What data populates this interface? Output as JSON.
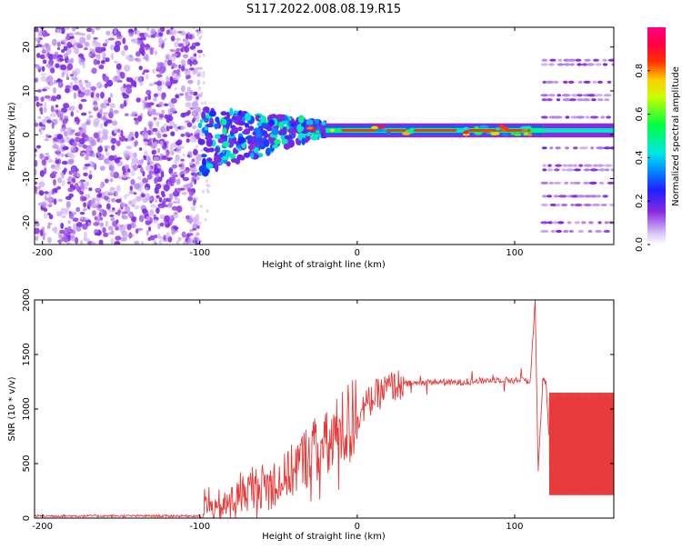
{
  "title": "S117.2022.008.08.19.R15",
  "colors": {
    "snr_line": "#e83a3a",
    "axis": "#000000",
    "background": "#ffffff"
  },
  "chart_data": [
    {
      "type": "heatmap",
      "title": "S117.2022.008.08.19.R15",
      "xlabel": "Height of straight line (km)",
      "ylabel": "Frequency (Hz)",
      "xlim": [
        -205,
        163
      ],
      "ylim": [
        -25,
        24.5
      ],
      "x_ticks": [
        -200,
        -100,
        0,
        100
      ],
      "x_tick_labels": [
        "-200",
        "-100",
        "0",
        "100"
      ],
      "y_ticks": [
        -20,
        -10,
        0,
        10,
        20
      ],
      "y_tick_labels": [
        "-20",
        "-10",
        "0",
        "10",
        "20"
      ],
      "colorbar": {
        "label": "Normalized spectral amplitude",
        "range": [
          0,
          1
        ],
        "ticks": [
          0.0,
          0.2,
          0.4,
          0.6,
          0.8
        ],
        "tick_labels": [
          "0.0",
          "0.2",
          "0.4",
          "0.6",
          "0.8"
        ],
        "colormap": "rainbow (white → purple → blue → cyan → green → yellow → red → magenta)"
      },
      "features": {
        "noise_region_x": [
          -205,
          -100
        ],
        "transition_region_x": [
          -100,
          -20
        ],
        "signal_frequency_hz": 1,
        "sideband_region_x": [
          118,
          163
        ],
        "sideband_frequencies_hz": [
          -22,
          -20,
          -16,
          -14,
          -11,
          -8,
          -7,
          -3,
          4,
          8,
          9,
          12,
          16,
          17
        ]
      },
      "grid": false
    },
    {
      "type": "line",
      "xlabel": "Height of straight line (km)",
      "ylabel": "SNR (10 * v/v)",
      "xlim": [
        -205,
        163
      ],
      "ylim": [
        0,
        2000
      ],
      "x_ticks": [
        -200,
        -100,
        0,
        100
      ],
      "x_tick_labels": [
        "-200",
        "-100",
        "0",
        "100"
      ],
      "y_ticks": [
        0,
        500,
        1000,
        1500,
        2000
      ],
      "y_tick_labels": [
        "0",
        "500",
        "1000",
        "1500",
        "2000"
      ],
      "grid": false,
      "series": [
        {
          "color": "#e83a3a",
          "x": [
            -205,
            -150,
            -100,
            -95,
            -90,
            -80,
            -70,
            -60,
            -50,
            -40,
            -30,
            -20,
            -10,
            0,
            10,
            20,
            30,
            40,
            50,
            60,
            70,
            80,
            90,
            100,
            105,
            110,
            113,
            115,
            118,
            120,
            122,
            130,
            140,
            150,
            163
          ],
          "values": [
            20,
            20,
            20,
            130,
            50,
            150,
            250,
            300,
            320,
            450,
            600,
            650,
            800,
            950,
            1100,
            1200,
            1230,
            1240,
            1250,
            1240,
            1250,
            1260,
            1270,
            1260,
            1280,
            1250,
            2000,
            430,
            1300,
            1230,
            680,
            680,
            680,
            680,
            680
          ]
        }
      ],
      "band": {
        "x_range": [
          122,
          163
        ],
        "low": 210,
        "high": 1150
      }
    }
  ]
}
